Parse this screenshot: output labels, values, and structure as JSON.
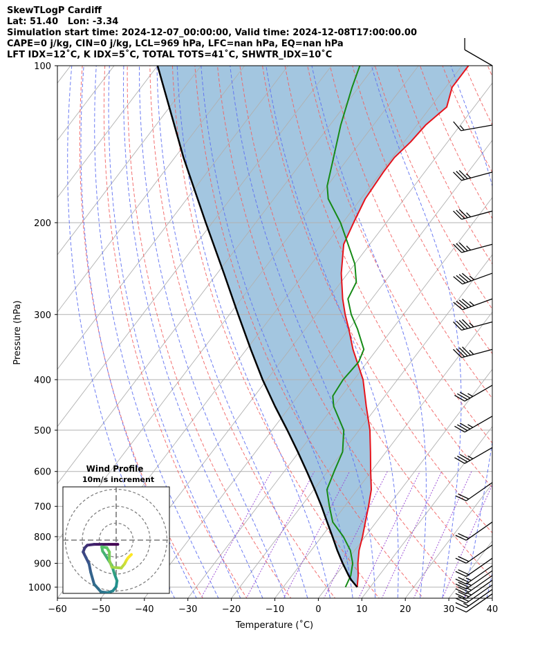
{
  "header": {
    "line1": "SkewTLogP Cardiff",
    "line2": "Lat: 51.40   Lon: -3.34",
    "line3": "Simulation start time: 2024-12-07_00:00:00, Valid time: 2024-12-08T17:00:00.00",
    "line4": "CAPE=0 j/kg, CIN=0 j/kg, LCL=969 hPa, LFC=nan hPa, EQ=nan hPa",
    "line5": "LFT IDX=12˚C, K IDX=5˚C, TOTAL TOTS=41˚C, SHWTR_IDX=10˚C"
  },
  "chart_data": {
    "type": "line",
    "title": "SkewTLogP Cardiff",
    "xlabel": "Temperature (˚C)",
    "ylabel": "Pressure (hPa)",
    "xlim": [
      -60,
      40
    ],
    "ylim": [
      1050,
      100
    ],
    "yscale": "log",
    "xticks": [
      "−60",
      "−50",
      "−40",
      "−30",
      "−20",
      "−10",
      "0",
      "10",
      "20",
      "30",
      "40"
    ],
    "yticks": [
      "100",
      "200",
      "300",
      "400",
      "500",
      "600",
      "700",
      "800",
      "900",
      "1000"
    ],
    "grid": true,
    "skew": true,
    "series": [
      {
        "key": "temperature",
        "color": "#e6131b",
        "p": [
          1000,
          950,
          900,
          850,
          800,
          750,
          700,
          650,
          600,
          550,
          500,
          450,
          400,
          350,
          320,
          300,
          280,
          250,
          220,
          200,
          180,
          160,
          150,
          140,
          130,
          120,
          110,
          100
        ],
        "t": [
          7.0,
          5.2,
          3.0,
          1.0,
          -0.6,
          -2.5,
          -4.5,
          -6.8,
          -10.1,
          -13.6,
          -17.5,
          -22.5,
          -27.9,
          -35.5,
          -40.0,
          -43.4,
          -46.7,
          -51.5,
          -56.0,
          -57.5,
          -59.0,
          -59.5,
          -59.5,
          -58.5,
          -58.0,
          -56.3,
          -58.5,
          -58.5
        ]
      },
      {
        "key": "dewpoint",
        "color": "#168a16",
        "p": [
          1000,
          950,
          900,
          850,
          800,
          750,
          700,
          650,
          600,
          550,
          500,
          450,
          430,
          400,
          370,
          350,
          320,
          300,
          280,
          260,
          240,
          220,
          200,
          180,
          170,
          150,
          130,
          110,
          100
        ],
        "t": [
          4.3,
          3.5,
          1.8,
          -1.0,
          -5.0,
          -10.0,
          -13.5,
          -17.0,
          -18.5,
          -20.0,
          -23.5,
          -30.0,
          -32.0,
          -32.5,
          -32.0,
          -33.0,
          -38.0,
          -42.0,
          -45.5,
          -46.5,
          -50.0,
          -55.0,
          -60.5,
          -67.5,
          -70.0,
          -73.5,
          -77.5,
          -81.5,
          -83.5
        ]
      },
      {
        "key": "parcel",
        "color": "#000000",
        "p": [
          1000,
          969,
          950,
          900,
          850,
          800,
          750,
          700,
          650,
          600,
          550,
          500,
          450,
          400,
          350,
          300,
          250,
          200,
          150,
          100
        ],
        "t": [
          7.0,
          4.4,
          3.0,
          -0.5,
          -4.0,
          -7.5,
          -11.3,
          -15.3,
          -19.8,
          -24.8,
          -30.3,
          -36.5,
          -43.5,
          -51.0,
          -59.0,
          -68.0,
          -78.5,
          -91.5,
          -108.0,
          -130.0
        ]
      }
    ],
    "wind_barbs": [
      {
        "p": 100,
        "speed_kt": 10,
        "dir_deg": 300
      },
      {
        "p": 130,
        "speed_kt": 15,
        "dir_deg": 260
      },
      {
        "p": 160,
        "speed_kt": 35,
        "dir_deg": 255
      },
      {
        "p": 190,
        "speed_kt": 35,
        "dir_deg": 255
      },
      {
        "p": 220,
        "speed_kt": 35,
        "dir_deg": 255
      },
      {
        "p": 250,
        "speed_kt": 45,
        "dir_deg": 250
      },
      {
        "p": 280,
        "speed_kt": 45,
        "dir_deg": 250
      },
      {
        "p": 310,
        "speed_kt": 45,
        "dir_deg": 255
      },
      {
        "p": 350,
        "speed_kt": 45,
        "dir_deg": 255
      },
      {
        "p": 410,
        "speed_kt": 35,
        "dir_deg": 240
      },
      {
        "p": 470,
        "speed_kt": 35,
        "dir_deg": 240
      },
      {
        "p": 540,
        "speed_kt": 35,
        "dir_deg": 240
      },
      {
        "p": 630,
        "speed_kt": 20,
        "dir_deg": 235
      },
      {
        "p": 750,
        "speed_kt": 20,
        "dir_deg": 235
      },
      {
        "p": 830,
        "speed_kt": 20,
        "dir_deg": 235
      },
      {
        "p": 880,
        "speed_kt": 20,
        "dir_deg": 235
      },
      {
        "p": 910,
        "speed_kt": 25,
        "dir_deg": 235
      },
      {
        "p": 930,
        "speed_kt": 25,
        "dir_deg": 235
      },
      {
        "p": 950,
        "speed_kt": 25,
        "dir_deg": 235
      },
      {
        "p": 970,
        "speed_kt": 25,
        "dir_deg": 235
      },
      {
        "p": 990,
        "speed_kt": 20,
        "dir_deg": 235
      },
      {
        "p": 1010,
        "speed_kt": 15,
        "dir_deg": 235
      },
      {
        "p": 1030,
        "speed_kt": 10,
        "dir_deg": 235
      }
    ],
    "hodograph": {
      "title": "Wind Profile",
      "subtitle": "10m/s increment",
      "ring_spacing_ms": 10,
      "rings": 3,
      "points": [
        {
          "u": 1.0,
          "v": -2.5
        },
        {
          "u": -4.5,
          "v": -2.5
        },
        {
          "u": -8.5,
          "v": -2.5
        },
        {
          "u": -13.0,
          "v": -2.5
        },
        {
          "u": -17.0,
          "v": -3.0
        },
        {
          "u": -18.5,
          "v": -4.5
        },
        {
          "u": -19.5,
          "v": -7.0
        },
        {
          "u": -18.0,
          "v": -10.0
        },
        {
          "u": -16.0,
          "v": -14.0
        },
        {
          "u": -15.0,
          "v": -19.0
        },
        {
          "u": -13.0,
          "v": -26.0
        },
        {
          "u": -9.0,
          "v": -30.5
        },
        {
          "u": -5.0,
          "v": -31.0
        },
        {
          "u": -2.0,
          "v": -30.0
        },
        {
          "u": 0.0,
          "v": -27.5
        },
        {
          "u": 0.5,
          "v": -24.0
        },
        {
          "u": -1.0,
          "v": -20.0
        },
        {
          "u": -2.5,
          "v": -15.0
        },
        {
          "u": -6.0,
          "v": -9.5
        },
        {
          "u": -8.0,
          "v": -6.5
        },
        {
          "u": -8.5,
          "v": -4.0
        },
        {
          "u": -5.5,
          "v": -4.5
        },
        {
          "u": -4.0,
          "v": -7.0
        },
        {
          "u": -4.0,
          "v": -12.0
        },
        {
          "u": -2.5,
          "v": -16.0
        },
        {
          "u": 3.0,
          "v": -16.5
        },
        {
          "u": 5.0,
          "v": -14.0
        },
        {
          "u": 6.0,
          "v": -12.0
        },
        {
          "u": 7.0,
          "v": -10.5
        },
        {
          "u": 9.0,
          "v": -8.5
        }
      ]
    },
    "colors": {
      "shade": "#a3c6e0",
      "isotherm": "#b0b0b0",
      "dry_adiabat": "#f26060",
      "moist_adiabat": "#5c6ef2",
      "mixing_ratio": "#9c4fd6",
      "grid": "#b0b0b0"
    }
  }
}
